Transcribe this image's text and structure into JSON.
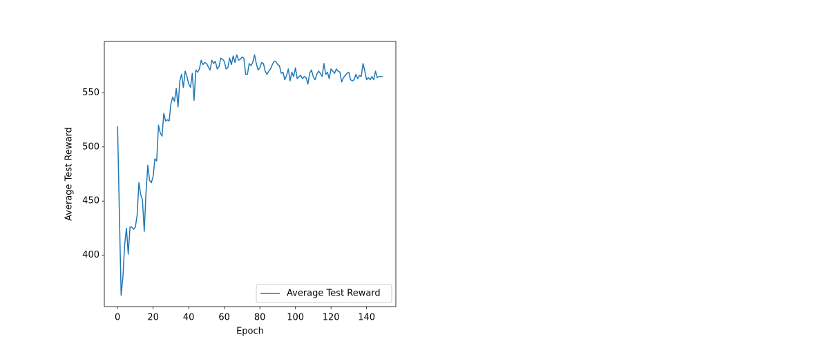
{
  "chart_data": {
    "type": "line",
    "xlabel": "Epoch",
    "ylabel": "Average Test Reward",
    "x": [
      0,
      1,
      2,
      3,
      4,
      5,
      6,
      7,
      8,
      9,
      10,
      11,
      12,
      13,
      14,
      15,
      16,
      17,
      18,
      19,
      20,
      21,
      22,
      23,
      24,
      25,
      26,
      27,
      28,
      29,
      30,
      31,
      32,
      33,
      34,
      35,
      36,
      37,
      38,
      39,
      40,
      41,
      42,
      43,
      44,
      45,
      46,
      47,
      48,
      49,
      50,
      51,
      52,
      53,
      54,
      55,
      56,
      57,
      58,
      59,
      60,
      61,
      62,
      63,
      64,
      65,
      66,
      67,
      68,
      69,
      70,
      71,
      72,
      73,
      74,
      75,
      76,
      77,
      78,
      79,
      80,
      81,
      82,
      83,
      84,
      85,
      86,
      87,
      88,
      89,
      90,
      91,
      92,
      93,
      94,
      95,
      96,
      97,
      98,
      99,
      100,
      101,
      102,
      103,
      104,
      105,
      106,
      107,
      108,
      109,
      110,
      111,
      112,
      113,
      114,
      115,
      116,
      117,
      118,
      119,
      120,
      121,
      122,
      123,
      124,
      125,
      126,
      127,
      128,
      129,
      130,
      131,
      132,
      133,
      134,
      135,
      136,
      137,
      138,
      139,
      140,
      141,
      142,
      143,
      144,
      145,
      146,
      147,
      148,
      149
    ],
    "series": [
      {
        "name": "Average Test Reward",
        "color": "#1f77b4",
        "values": [
          519,
          440,
          363,
          380,
          410,
          425,
          401,
          426,
          426,
          424,
          426,
          437,
          467,
          456,
          451,
          422,
          458,
          483,
          469,
          467,
          473,
          489,
          487,
          520,
          513,
          510,
          531,
          524,
          525,
          524,
          540,
          546,
          542,
          554,
          537,
          561,
          567,
          555,
          570,
          565,
          558,
          555,
          568,
          543,
          571,
          569,
          572,
          580,
          576,
          578,
          577,
          574,
          571,
          580,
          577,
          579,
          572,
          574,
          582,
          581,
          579,
          572,
          573,
          582,
          576,
          584,
          578,
          585,
          580,
          581,
          583,
          582,
          567,
          567,
          577,
          575,
          578,
          585,
          577,
          571,
          573,
          578,
          577,
          570,
          567,
          570,
          572,
          576,
          579,
          579,
          576,
          575,
          568,
          569,
          562,
          566,
          572,
          561,
          569,
          565,
          573,
          563,
          565,
          566,
          563,
          565,
          564,
          558,
          568,
          571,
          565,
          562,
          567,
          570,
          568,
          565,
          577,
          567,
          569,
          563,
          572,
          570,
          568,
          572,
          570,
          569,
          560,
          564,
          566,
          568,
          569,
          562,
          561,
          562,
          567,
          563,
          566,
          565,
          577,
          570,
          562,
          564,
          562,
          565,
          562,
          570,
          564,
          565,
          565,
          565
        ]
      }
    ],
    "xlim": [
      -7.45,
      156.45
    ],
    "ylim": [
      352.6,
      597.4
    ],
    "xticks": [
      0,
      20,
      40,
      60,
      80,
      100,
      120,
      140
    ],
    "yticks": [
      400,
      450,
      500,
      550
    ],
    "grid": false,
    "legend": "lower right"
  }
}
